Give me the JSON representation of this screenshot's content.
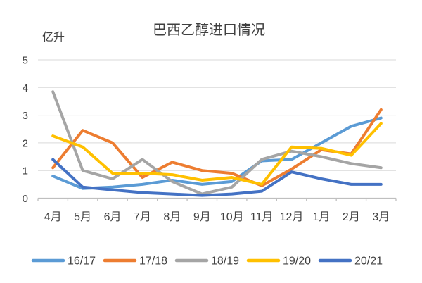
{
  "chart_data": {
    "type": "line",
    "title": "巴西乙醇进口情况",
    "unit_label": "亿升",
    "categories": [
      "4月",
      "5月",
      "6月",
      "7月",
      "8月",
      "9月",
      "10月",
      "11月",
      "12月",
      "1月",
      "2月",
      "3月"
    ],
    "series": [
      {
        "name": "16/17",
        "color": "#5B9BD5",
        "values": [
          0.8,
          0.35,
          0.4,
          0.5,
          0.65,
          0.5,
          0.6,
          1.35,
          1.4,
          2.0,
          2.6,
          2.9
        ]
      },
      {
        "name": "17/18",
        "color": "#ED7D31",
        "values": [
          1.1,
          2.45,
          2.0,
          0.75,
          1.3,
          1.0,
          0.9,
          0.45,
          1.05,
          1.75,
          1.6,
          3.2
        ]
      },
      {
        "name": "18/19",
        "color": "#A5A5A5",
        "values": [
          3.85,
          1.0,
          0.7,
          1.4,
          0.6,
          0.15,
          0.4,
          1.4,
          1.7,
          1.5,
          1.25,
          1.1
        ]
      },
      {
        "name": "19/20",
        "color": "#FFC000",
        "values": [
          2.25,
          1.85,
          0.9,
          0.9,
          0.85,
          0.65,
          0.75,
          0.5,
          1.85,
          1.8,
          1.55,
          2.7
        ]
      },
      {
        "name": "20/21",
        "color": "#4472C4",
        "values": [
          1.4,
          0.4,
          0.3,
          0.2,
          0.15,
          0.1,
          0.15,
          0.25,
          0.95,
          0.7,
          0.5,
          0.5
        ]
      }
    ],
    "ylim": [
      0,
      5
    ],
    "yticks": [
      0,
      1,
      2,
      3,
      4,
      5
    ],
    "grid": true,
    "legend_position": "bottom",
    "text_color": "#404040",
    "gridline_color": "#D9D9D9",
    "axis_color": "#BFBFBF"
  }
}
